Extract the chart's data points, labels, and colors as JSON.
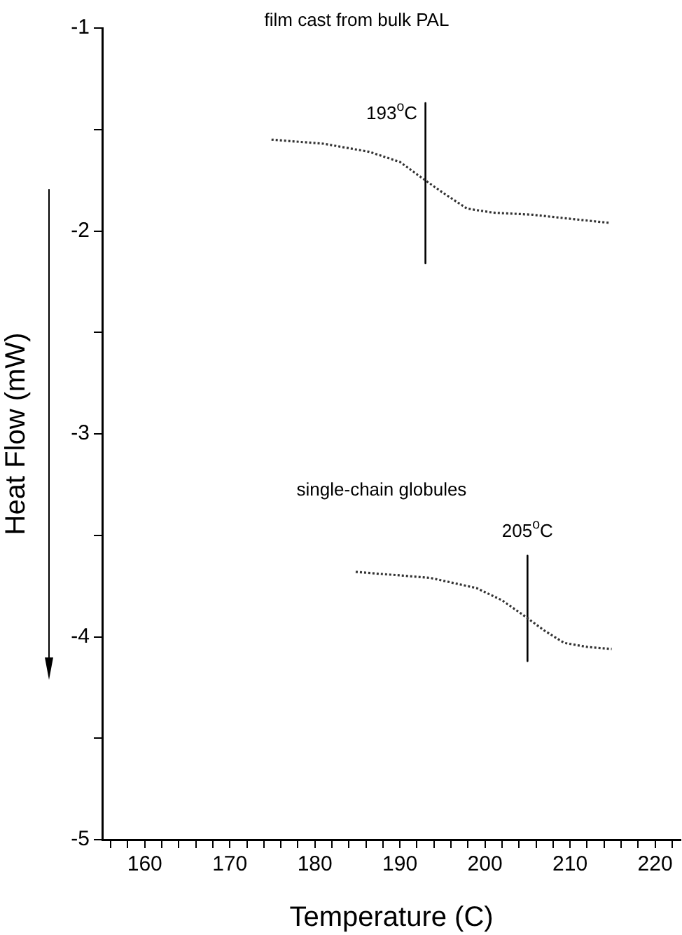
{
  "chart_data": {
    "type": "line",
    "xlabel": "Temperature (C)",
    "ylabel": "Heat Flow (mW)",
    "xlim": [
      155,
      223
    ],
    "ylim": [
      -5,
      -1
    ],
    "xticks": [
      {
        "value": 156,
        "label": null
      },
      {
        "value": 158,
        "label": null
      },
      160,
      {
        "value": 162,
        "label": null
      },
      {
        "value": 164,
        "label": null
      },
      {
        "value": 166,
        "label": null
      },
      {
        "value": 168,
        "label": null
      },
      170,
      {
        "value": 172,
        "label": null
      },
      {
        "value": 174,
        "label": null
      },
      {
        "value": 176,
        "label": null
      },
      {
        "value": 178,
        "label": null
      },
      180,
      {
        "value": 182,
        "label": null
      },
      {
        "value": 184,
        "label": null
      },
      {
        "value": 186,
        "label": null
      },
      {
        "value": 188,
        "label": null
      },
      190,
      {
        "value": 192,
        "label": null
      },
      {
        "value": 194,
        "label": null
      },
      {
        "value": 196,
        "label": null
      },
      {
        "value": 198,
        "label": null
      },
      200,
      {
        "value": 202,
        "label": null
      },
      {
        "value": 204,
        "label": null
      },
      {
        "value": 206,
        "label": null
      },
      {
        "value": 208,
        "label": null
      },
      210,
      {
        "value": 212,
        "label": null
      },
      {
        "value": 214,
        "label": null
      },
      {
        "value": 216,
        "label": null
      },
      {
        "value": 218,
        "label": null
      },
      220,
      {
        "value": 222,
        "label": null
      }
    ],
    "yticks": [
      -5,
      {
        "value": -4.5,
        "label": null
      },
      -4,
      {
        "value": -3.5,
        "label": null
      },
      -3,
      {
        "value": -2.5,
        "label": null
      },
      -2,
      {
        "value": -1.5,
        "label": null
      },
      -1
    ],
    "grid": false,
    "legend": false,
    "marker": "none",
    "series": [
      {
        "color": "#333333",
        "line_style": "dotted",
        "x": [
          174.9,
          181,
          186.4,
          190,
          192.3,
          195,
          197.9,
          201,
          205.6,
          210,
          214.6
        ],
        "values": [
          -1.55,
          -1.57,
          -1.61,
          -1.66,
          -1.73,
          -1.81,
          -1.89,
          -1.91,
          -1.92,
          -1.94,
          -1.96
        ]
      },
      {
        "color": "#000000",
        "line_style": "solid",
        "x": [
          193,
          193
        ],
        "values": [
          -1.37,
          -2.16
        ]
      },
      {
        "color": "#333333",
        "line_style": "dotted",
        "x": [
          184.8,
          193.6,
          199,
          202,
          204.4,
          207,
          209.3,
          212,
          214.9
        ],
        "values": [
          -3.68,
          -3.71,
          -3.76,
          -3.82,
          -3.89,
          -3.97,
          -4.03,
          -4.05,
          -4.06
        ]
      },
      {
        "color": "#000000",
        "line_style": "solid",
        "x": [
          205,
          205
        ],
        "values": [
          -3.6,
          -4.12
        ]
      }
    ],
    "annotations": [
      "film cast from bulk PAL",
      "single-chain globules",
      {
        "text": "193$^{o}$C",
        "x": 193,
        "y": -1.37
      },
      {
        "text": "205$^{o}$C",
        "x": 205,
        "y": -3.6
      }
    ]
  }
}
